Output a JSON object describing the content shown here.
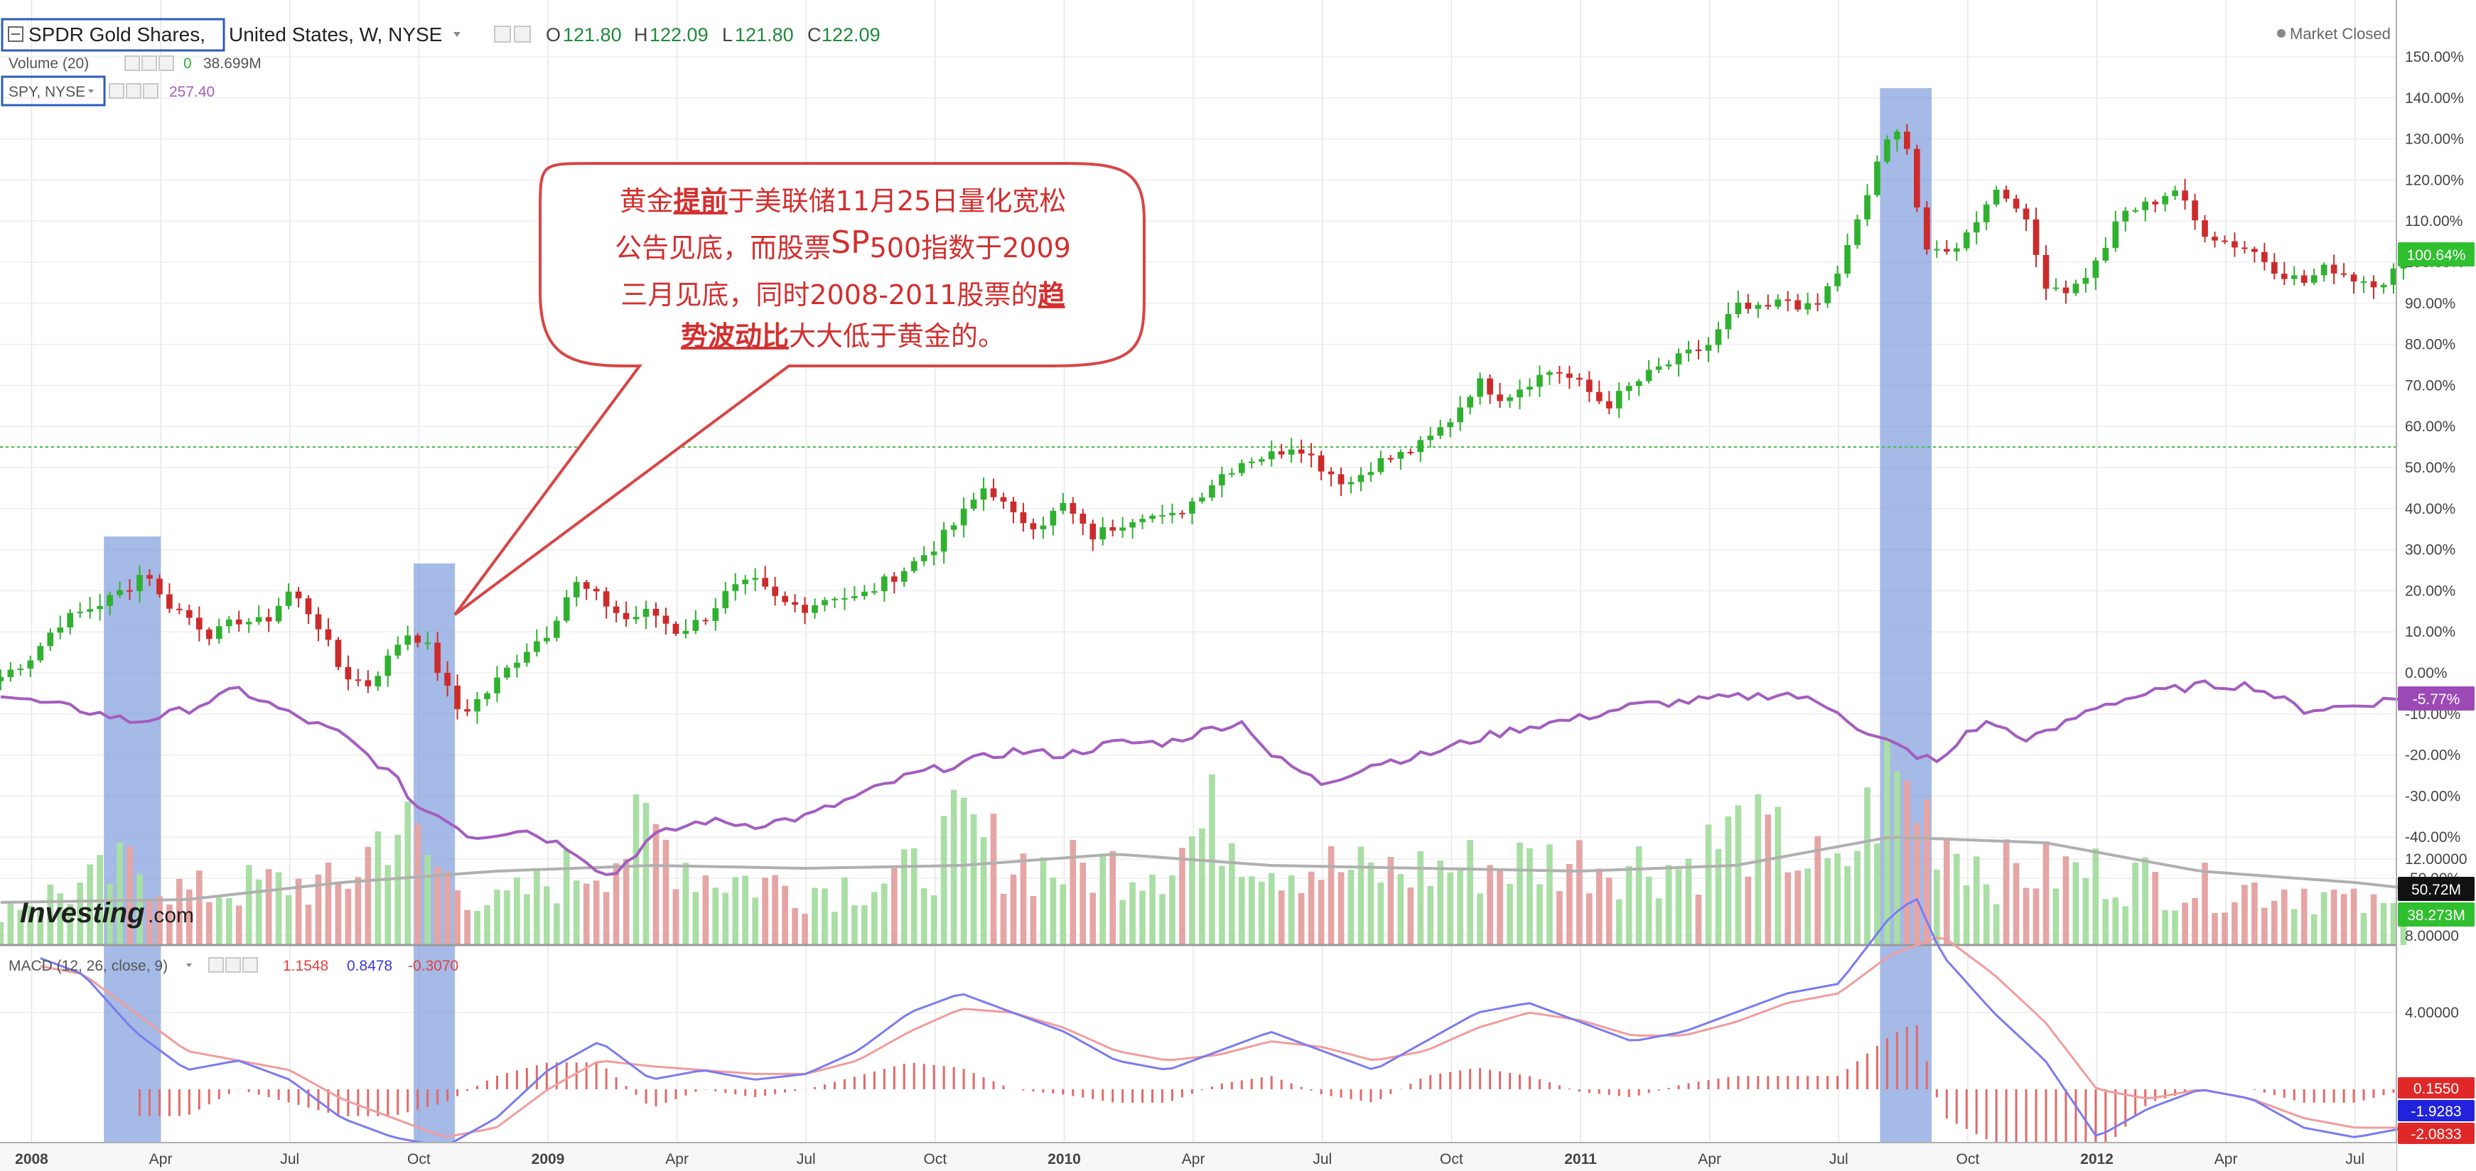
{
  "header": {
    "symbol": "SPDR Gold Shares,",
    "exchange": "United States, W, NYSE",
    "open_label": "O",
    "open": "121.80",
    "high_label": "H",
    "high": "122.09",
    "low_label": "L",
    "low": "121.80",
    "close_label": "C",
    "close": "122.09",
    "market_status": "Market Closed"
  },
  "volume_legend": {
    "label": "Volume (20)",
    "value1": "0",
    "value2": "38.699M"
  },
  "spy_legend": {
    "label": "SPY, NYSE",
    "value": "257.40"
  },
  "macd_legend": {
    "label": "MACD (12, 26, close, 9)",
    "value1": "1.1548",
    "value2": "0.8478",
    "value3": "-0.3070"
  },
  "watermark": {
    "text": "Investing",
    "suffix": ".com"
  },
  "annotation": {
    "lines": [
      [
        {
          "t": "黄金",
          "s": "n"
        },
        {
          "t": "提前",
          "s": "b"
        },
        {
          "t": "于美联储11月25日量化宽松",
          "s": "n"
        }
      ],
      [
        {
          "t": "公告见底，而股票",
          "s": "n"
        },
        {
          "t": "SP",
          "s": "sp"
        },
        {
          "t": "500指数于2009",
          "s": "n"
        }
      ],
      [
        {
          "t": "三月见底，同时2008-2011股票的",
          "s": "n"
        },
        {
          "t": "趋",
          "s": "b"
        }
      ],
      [
        {
          "t": "势波动比",
          "s": "b"
        },
        {
          "t": "大大低于黄金的。",
          "s": "n"
        }
      ]
    ]
  },
  "right_axis_badges": {
    "gold": "100.64%",
    "spy": "-5.77%",
    "vol_ma": "50.72M",
    "vol": "38.273M",
    "macd1": "0.1550",
    "macd2": "-1.9283",
    "macd3": "-2.0833"
  },
  "colors": {
    "up": "#2fb12f",
    "down": "#cc2b2b",
    "spy": "#a45dc0",
    "vol_up": "#a9dea5",
    "vol_down": "#e6a5a5",
    "vol_ma": "#b0b0b0",
    "macd": "#7b7bf0",
    "signal": "#f29c9c",
    "highlight": "#6d8fd6",
    "callout_border": "#d94545",
    "callout_text": "#d42f2f",
    "badge_green": "#2fbf2f",
    "badge_purple": "#9c4ab8",
    "badge_red": "#e02828",
    "badge_blue": "#2222dd",
    "badge_dark": "#111111"
  },
  "chart_data": {
    "type": "candlestick",
    "y_axis_unit": "percent",
    "y_ticks": [
      "150.00%",
      "140.00%",
      "130.00%",
      "120.00%",
      "110.00%",
      "100.00%",
      "90.00%",
      "80.00%",
      "70.00%",
      "60.00%",
      "50.00%",
      "40.00%",
      "30.00%",
      "20.00%",
      "10.00%",
      "0.00%",
      "-10.00%",
      "-20.00%",
      "-30.00%",
      "-40.00%",
      "-50.00%"
    ],
    "macd_ticks": [
      "12.00000",
      "8.00000",
      "4.00000"
    ],
    "x_ticks": [
      {
        "label": "2008",
        "t": 0,
        "bold": true
      },
      {
        "label": "Apr",
        "t": 0.25
      },
      {
        "label": "Jul",
        "t": 0.5
      },
      {
        "label": "Oct",
        "t": 0.75
      },
      {
        "label": "2009",
        "t": 1,
        "bold": true
      },
      {
        "label": "Apr",
        "t": 1.25
      },
      {
        "label": "Jul",
        "t": 1.5
      },
      {
        "label": "Oct",
        "t": 1.75
      },
      {
        "label": "2010",
        "t": 2,
        "bold": true
      },
      {
        "label": "Apr",
        "t": 2.25
      },
      {
        "label": "Jul",
        "t": 2.5
      },
      {
        "label": "Oct",
        "t": 2.75
      },
      {
        "label": "2011",
        "t": 3,
        "bold": true
      },
      {
        "label": "Apr",
        "t": 3.25
      },
      {
        "label": "Jul",
        "t": 3.5
      },
      {
        "label": "Oct",
        "t": 3.75
      },
      {
        "label": "2012",
        "t": 4,
        "bold": true
      },
      {
        "label": "Apr",
        "t": 4.25
      },
      {
        "label": "Jul",
        "t": 4.5
      }
    ],
    "reference_line_pct": 55,
    "highlight_ranges": [
      [
        0.14,
        0.25
      ],
      [
        0.74,
        0.82
      ],
      [
        3.58,
        3.68
      ]
    ],
    "gold_anchors": [
      [
        -0.06,
        -1
      ],
      [
        0.0,
        4
      ],
      [
        0.05,
        12
      ],
      [
        0.1,
        15
      ],
      [
        0.15,
        18
      ],
      [
        0.2,
        22
      ],
      [
        0.22,
        26
      ],
      [
        0.25,
        18
      ],
      [
        0.3,
        14
      ],
      [
        0.35,
        9
      ],
      [
        0.4,
        13
      ],
      [
        0.45,
        12
      ],
      [
        0.5,
        20
      ],
      [
        0.55,
        13
      ],
      [
        0.6,
        0
      ],
      [
        0.65,
        -3
      ],
      [
        0.7,
        5
      ],
      [
        0.72,
        10
      ],
      [
        0.76,
        8
      ],
      [
        0.8,
        -3
      ],
      [
        0.83,
        -10
      ],
      [
        0.88,
        -5
      ],
      [
        0.95,
        5
      ],
      [
        1.0,
        10
      ],
      [
        1.05,
        22
      ],
      [
        1.1,
        18
      ],
      [
        1.15,
        13
      ],
      [
        1.2,
        15
      ],
      [
        1.25,
        10
      ],
      [
        1.3,
        13
      ],
      [
        1.35,
        20
      ],
      [
        1.4,
        22
      ],
      [
        1.45,
        17
      ],
      [
        1.5,
        16
      ],
      [
        1.55,
        19
      ],
      [
        1.6,
        18
      ],
      [
        1.65,
        22
      ],
      [
        1.7,
        26
      ],
      [
        1.75,
        31
      ],
      [
        1.8,
        38
      ],
      [
        1.85,
        46
      ],
      [
        1.9,
        38
      ],
      [
        1.95,
        36
      ],
      [
        2.0,
        41
      ],
      [
        2.05,
        33
      ],
      [
        2.1,
        36
      ],
      [
        2.15,
        39
      ],
      [
        2.2,
        37
      ],
      [
        2.25,
        42
      ],
      [
        2.3,
        48
      ],
      [
        2.35,
        52
      ],
      [
        2.4,
        53
      ],
      [
        2.45,
        56
      ],
      [
        2.5,
        50
      ],
      [
        2.55,
        46
      ],
      [
        2.6,
        51
      ],
      [
        2.65,
        53
      ],
      [
        2.7,
        56
      ],
      [
        2.75,
        62
      ],
      [
        2.8,
        71
      ],
      [
        2.85,
        67
      ],
      [
        2.9,
        71
      ],
      [
        2.95,
        74
      ],
      [
        3.0,
        70
      ],
      [
        3.05,
        65
      ],
      [
        3.1,
        70
      ],
      [
        3.15,
        74
      ],
      [
        3.2,
        77
      ],
      [
        3.25,
        80
      ],
      [
        3.3,
        89
      ],
      [
        3.35,
        88
      ],
      [
        3.4,
        91
      ],
      [
        3.45,
        88
      ],
      [
        3.5,
        98
      ],
      [
        3.55,
        114
      ],
      [
        3.58,
        127
      ],
      [
        3.62,
        132
      ],
      [
        3.64,
        127
      ],
      [
        3.66,
        104
      ],
      [
        3.7,
        101
      ],
      [
        3.75,
        107
      ],
      [
        3.8,
        118
      ],
      [
        3.85,
        114
      ],
      [
        3.9,
        95
      ],
      [
        3.95,
        93
      ],
      [
        4.0,
        100
      ],
      [
        4.05,
        112
      ],
      [
        4.1,
        114
      ],
      [
        4.15,
        118
      ],
      [
        4.2,
        108
      ],
      [
        4.25,
        105
      ],
      [
        4.3,
        103
      ],
      [
        4.35,
        98
      ],
      [
        4.4,
        95
      ],
      [
        4.45,
        99
      ],
      [
        4.5,
        96
      ],
      [
        4.55,
        95
      ],
      [
        4.6,
        100.64
      ]
    ],
    "spy_anchors": [
      [
        -0.06,
        -5
      ],
      [
        0.0,
        -7
      ],
      [
        0.1,
        -9
      ],
      [
        0.2,
        -12
      ],
      [
        0.3,
        -9
      ],
      [
        0.4,
        -4
      ],
      [
        0.5,
        -10
      ],
      [
        0.6,
        -15
      ],
      [
        0.7,
        -25
      ],
      [
        0.75,
        -33
      ],
      [
        0.8,
        -35
      ],
      [
        0.85,
        -40
      ],
      [
        0.95,
        -38
      ],
      [
        1.05,
        -43
      ],
      [
        1.12,
        -50
      ],
      [
        1.2,
        -40
      ],
      [
        1.3,
        -36
      ],
      [
        1.4,
        -37
      ],
      [
        1.5,
        -35
      ],
      [
        1.6,
        -30
      ],
      [
        1.7,
        -25
      ],
      [
        1.8,
        -22
      ],
      [
        1.9,
        -19
      ],
      [
        2.0,
        -20
      ],
      [
        2.1,
        -17
      ],
      [
        2.2,
        -17
      ],
      [
        2.3,
        -13
      ],
      [
        2.35,
        -12
      ],
      [
        2.4,
        -20
      ],
      [
        2.5,
        -27
      ],
      [
        2.6,
        -22
      ],
      [
        2.7,
        -20
      ],
      [
        2.8,
        -16
      ],
      [
        2.9,
        -13
      ],
      [
        3.0,
        -11
      ],
      [
        3.1,
        -8
      ],
      [
        3.2,
        -7
      ],
      [
        3.3,
        -6
      ],
      [
        3.4,
        -5
      ],
      [
        3.5,
        -9
      ],
      [
        3.55,
        -15
      ],
      [
        3.6,
        -17
      ],
      [
        3.65,
        -20
      ],
      [
        3.7,
        -22
      ],
      [
        3.75,
        -14
      ],
      [
        3.8,
        -12
      ],
      [
        3.85,
        -16
      ],
      [
        3.9,
        -15
      ],
      [
        4.0,
        -8
      ],
      [
        4.1,
        -5
      ],
      [
        4.2,
        -3
      ],
      [
        4.3,
        -3
      ],
      [
        4.4,
        -9
      ],
      [
        4.5,
        -8
      ],
      [
        4.6,
        -5.77
      ]
    ],
    "volume_anchors": [
      [
        -0.06,
        14
      ],
      [
        0.1,
        20
      ],
      [
        0.2,
        28
      ],
      [
        0.3,
        18
      ],
      [
        0.5,
        22
      ],
      [
        0.6,
        20
      ],
      [
        0.7,
        45
      ],
      [
        0.8,
        24
      ],
      [
        0.9,
        14
      ],
      [
        1.1,
        30
      ],
      [
        1.2,
        40
      ],
      [
        1.3,
        25
      ],
      [
        1.5,
        20
      ],
      [
        1.7,
        24
      ],
      [
        1.8,
        40
      ],
      [
        1.9,
        30
      ],
      [
        2.0,
        26
      ],
      [
        2.2,
        30
      ],
      [
        2.3,
        45
      ],
      [
        2.4,
        30
      ],
      [
        2.6,
        25
      ],
      [
        2.8,
        28
      ],
      [
        3.0,
        30
      ],
      [
        3.2,
        28
      ],
      [
        3.3,
        40
      ],
      [
        3.4,
        34
      ],
      [
        3.5,
        24
      ],
      [
        3.6,
        60
      ],
      [
        3.7,
        40
      ],
      [
        3.8,
        26
      ],
      [
        4.0,
        26
      ],
      [
        4.2,
        20
      ],
      [
        4.4,
        20
      ],
      [
        4.5,
        14
      ],
      [
        4.6,
        12
      ]
    ],
    "volume_ma_anchors": [
      [
        -0.06,
        15
      ],
      [
        0.3,
        16
      ],
      [
        0.6,
        22
      ],
      [
        0.9,
        26
      ],
      [
        1.2,
        28
      ],
      [
        1.5,
        27
      ],
      [
        1.8,
        28
      ],
      [
        2.1,
        32
      ],
      [
        2.4,
        28
      ],
      [
        2.7,
        27
      ],
      [
        3.0,
        26
      ],
      [
        3.3,
        28
      ],
      [
        3.6,
        38
      ],
      [
        3.9,
        36
      ],
      [
        4.2,
        26
      ],
      [
        4.5,
        22
      ],
      [
        4.6,
        20
      ]
    ],
    "macd_anchors": [
      [
        0.0,
        7
      ],
      [
        0.1,
        6
      ],
      [
        0.2,
        3
      ],
      [
        0.3,
        1
      ],
      [
        0.4,
        1.5
      ],
      [
        0.5,
        0.5
      ],
      [
        0.6,
        -1.5
      ],
      [
        0.7,
        -2.5
      ],
      [
        0.8,
        -3
      ],
      [
        0.9,
        -1.5
      ],
      [
        1.0,
        1
      ],
      [
        1.1,
        2.5
      ],
      [
        1.2,
        0.5
      ],
      [
        1.3,
        1
      ],
      [
        1.4,
        0.5
      ],
      [
        1.5,
        0.8
      ],
      [
        1.6,
        2
      ],
      [
        1.7,
        4
      ],
      [
        1.8,
        5
      ],
      [
        1.9,
        4
      ],
      [
        2.0,
        3
      ],
      [
        2.1,
        1.5
      ],
      [
        2.2,
        1
      ],
      [
        2.3,
        2
      ],
      [
        2.4,
        3
      ],
      [
        2.5,
        2
      ],
      [
        2.6,
        1
      ],
      [
        2.7,
        2.5
      ],
      [
        2.8,
        4
      ],
      [
        2.9,
        4.5
      ],
      [
        3.0,
        3.5
      ],
      [
        3.1,
        2.5
      ],
      [
        3.2,
        3
      ],
      [
        3.3,
        4
      ],
      [
        3.4,
        5
      ],
      [
        3.5,
        5.5
      ],
      [
        3.6,
        9
      ],
      [
        3.65,
        10
      ],
      [
        3.7,
        7
      ],
      [
        3.8,
        4
      ],
      [
        3.9,
        1.5
      ],
      [
        4.0,
        -2.5
      ],
      [
        4.1,
        -1
      ],
      [
        4.2,
        0
      ],
      [
        4.3,
        -0.5
      ],
      [
        4.4,
        -2
      ],
      [
        4.5,
        -2.5
      ],
      [
        4.6,
        -2
      ]
    ],
    "signal_anchors": [
      [
        0.0,
        6.5
      ],
      [
        0.1,
        6
      ],
      [
        0.2,
        4
      ],
      [
        0.3,
        2
      ],
      [
        0.4,
        1.5
      ],
      [
        0.5,
        1
      ],
      [
        0.6,
        -0.5
      ],
      [
        0.7,
        -1.5
      ],
      [
        0.8,
        -2.5
      ],
      [
        0.9,
        -2
      ],
      [
        1.0,
        0
      ],
      [
        1.1,
        1.5
      ],
      [
        1.2,
        1.2
      ],
      [
        1.3,
        1
      ],
      [
        1.4,
        0.8
      ],
      [
        1.5,
        0.8
      ],
      [
        1.6,
        1.5
      ],
      [
        1.7,
        3
      ],
      [
        1.8,
        4.2
      ],
      [
        1.9,
        4
      ],
      [
        2.0,
        3.2
      ],
      [
        2.1,
        2
      ],
      [
        2.2,
        1.5
      ],
      [
        2.3,
        1.8
      ],
      [
        2.4,
        2.5
      ],
      [
        2.5,
        2.2
      ],
      [
        2.6,
        1.5
      ],
      [
        2.7,
        2
      ],
      [
        2.8,
        3.2
      ],
      [
        2.9,
        4
      ],
      [
        3.0,
        3.6
      ],
      [
        3.1,
        2.8
      ],
      [
        3.2,
        2.8
      ],
      [
        3.3,
        3.5
      ],
      [
        3.4,
        4.5
      ],
      [
        3.5,
        5
      ],
      [
        3.6,
        7
      ],
      [
        3.7,
        8
      ],
      [
        3.8,
        6
      ],
      [
        3.9,
        3.5
      ],
      [
        4.0,
        0
      ],
      [
        4.1,
        -0.5
      ],
      [
        4.2,
        0
      ],
      [
        4.3,
        -0.5
      ],
      [
        4.4,
        -1.5
      ],
      [
        4.5,
        -2
      ],
      [
        4.6,
        -2
      ]
    ]
  }
}
